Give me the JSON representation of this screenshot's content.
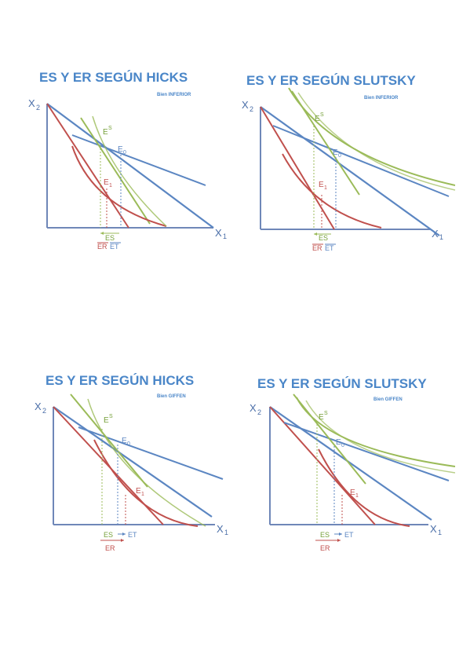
{
  "colors": {
    "blue": "#5b86c2",
    "red": "#c0504d",
    "green": "#9bbb59",
    "title": "#4a86c8",
    "axis": "#6f87b8"
  },
  "panels": [
    {
      "title": "ES Y ER SEGÚN HICKS",
      "subtitle": "Bien INFERIOR",
      "y_axis": "X",
      "y_axis_sub": "2",
      "x_axis": "X",
      "x_axis_sub": "1",
      "e0": "E",
      "e0_sub": "0",
      "es_point": "E",
      "es_point_sup": "S",
      "e1": "E",
      "e1_sub": "1",
      "es": "ES",
      "er": "ER",
      "et": "ET"
    },
    {
      "title": "ES Y ER SEGÚN SLUTSKY",
      "subtitle": "Bien INFERIOR",
      "y_axis": "X",
      "y_axis_sub": "2",
      "x_axis": "X",
      "x_axis_sub": "1",
      "e0": "E",
      "e0_sub": "0",
      "es_point": "E",
      "es_point_sup": "S",
      "e1": "E",
      "e1_sub": "1",
      "es": "ES",
      "er": "ER",
      "et": "ET"
    },
    {
      "title": "ES Y ER SEGÚN HICKS",
      "subtitle": "Bien GIFFEN",
      "y_axis": "X",
      "y_axis_sub": "2",
      "x_axis": "X",
      "x_axis_sub": "1",
      "e0": "E",
      "e0_sub": "0",
      "es_point": "E",
      "es_point_sup": "S",
      "e1": "E",
      "e1_sub": "1",
      "es": "ES",
      "er": "ER",
      "et": "ET"
    },
    {
      "title": "ES Y ER SEGÚN SLUTSKY",
      "subtitle": "Bien GIFFEN",
      "y_axis": "X",
      "y_axis_sub": "2",
      "x_axis": "X",
      "x_axis_sub": "1",
      "e0": "E",
      "e0_sub": "0",
      "es_point": "E",
      "es_point_sup": "S",
      "e1": "E",
      "e1_sub": "1",
      "es": "ES",
      "er": "ER",
      "et": "ET"
    }
  ]
}
